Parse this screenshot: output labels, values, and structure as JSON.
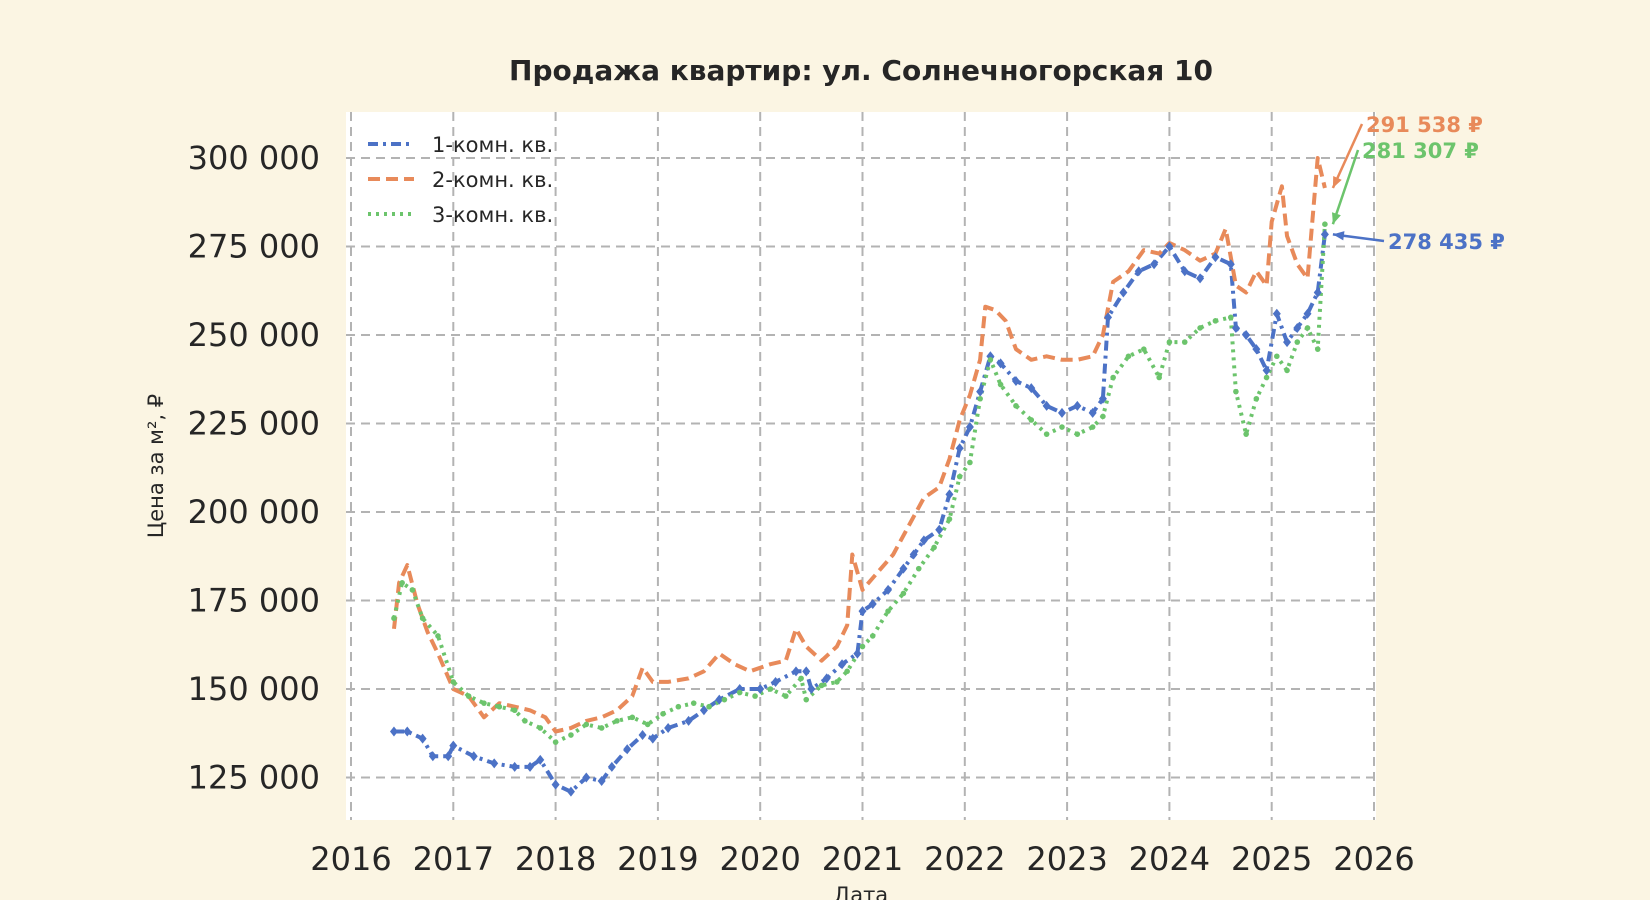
{
  "chart_data": {
    "type": "line",
    "title": "Продажа квартир: ул. Солнечногорская 10",
    "xlabel": "Дата",
    "ylabel": "Цена за м², ₽",
    "xlim": [
      2016,
      2026
    ],
    "ylim": [
      113000,
      313000
    ],
    "x_ticks": [
      2016,
      2017,
      2018,
      2019,
      2020,
      2021,
      2022,
      2023,
      2024,
      2025,
      2026
    ],
    "x_tick_labels": [
      "2016",
      "2017",
      "2018",
      "2019",
      "2020",
      "2021",
      "2022",
      "2023",
      "2024",
      "2025",
      "2026"
    ],
    "y_ticks": [
      125000,
      150000,
      175000,
      200000,
      225000,
      250000,
      275000,
      300000
    ],
    "y_tick_labels": [
      "125 000",
      "150 000",
      "175 000",
      "200 000",
      "225 000",
      "250 000",
      "275 000",
      "300 000"
    ],
    "grid": true,
    "legend_position": "top-left",
    "series": [
      {
        "name": "1-комн. кв.",
        "color": "#4c72c6",
        "style": "dash-dot",
        "marker": "diamond",
        "end_label": "278 435 ₽",
        "points": [
          [
            2016.42,
            138000
          ],
          [
            2016.55,
            138000
          ],
          [
            2016.7,
            136000
          ],
          [
            2016.8,
            131000
          ],
          [
            2016.95,
            131000
          ],
          [
            2017.0,
            134000
          ],
          [
            2017.2,
            131000
          ],
          [
            2017.4,
            129000
          ],
          [
            2017.6,
            128000
          ],
          [
            2017.75,
            128000
          ],
          [
            2017.85,
            130000
          ],
          [
            2018.0,
            123000
          ],
          [
            2018.15,
            121000
          ],
          [
            2018.3,
            125000
          ],
          [
            2018.45,
            124000
          ],
          [
            2018.55,
            128000
          ],
          [
            2018.7,
            133000
          ],
          [
            2018.85,
            137000
          ],
          [
            2018.95,
            136000
          ],
          [
            2019.1,
            139000
          ],
          [
            2019.3,
            141000
          ],
          [
            2019.45,
            144000
          ],
          [
            2019.6,
            147000
          ],
          [
            2019.8,
            150000
          ],
          [
            2020.0,
            150000
          ],
          [
            2020.15,
            152000
          ],
          [
            2020.35,
            155000
          ],
          [
            2020.45,
            155000
          ],
          [
            2020.5,
            150000
          ],
          [
            2020.65,
            153000
          ],
          [
            2020.8,
            157000
          ],
          [
            2020.95,
            160000
          ],
          [
            2021.0,
            172000
          ],
          [
            2021.1,
            174000
          ],
          [
            2021.25,
            178000
          ],
          [
            2021.4,
            184000
          ],
          [
            2021.5,
            188000
          ],
          [
            2021.6,
            192000
          ],
          [
            2021.75,
            195000
          ],
          [
            2021.85,
            205000
          ],
          [
            2021.95,
            218000
          ],
          [
            2022.05,
            224000
          ],
          [
            2022.15,
            234000
          ],
          [
            2022.25,
            244000
          ],
          [
            2022.35,
            242000
          ],
          [
            2022.5,
            237000
          ],
          [
            2022.65,
            235000
          ],
          [
            2022.8,
            230000
          ],
          [
            2022.95,
            228000
          ],
          [
            2023.1,
            230000
          ],
          [
            2023.25,
            228000
          ],
          [
            2023.35,
            232000
          ],
          [
            2023.4,
            255000
          ],
          [
            2023.55,
            262000
          ],
          [
            2023.7,
            268000
          ],
          [
            2023.85,
            270000
          ],
          [
            2024.0,
            275000
          ],
          [
            2024.15,
            268000
          ],
          [
            2024.3,
            266000
          ],
          [
            2024.45,
            272000
          ],
          [
            2024.6,
            270000
          ],
          [
            2024.65,
            252000
          ],
          [
            2024.75,
            250000
          ],
          [
            2024.85,
            246000
          ],
          [
            2024.95,
            240000
          ],
          [
            2025.05,
            256000
          ],
          [
            2025.15,
            248000
          ],
          [
            2025.25,
            252000
          ],
          [
            2025.35,
            256000
          ],
          [
            2025.45,
            262000
          ],
          [
            2025.52,
            278435
          ]
        ]
      },
      {
        "name": "2-комн. кв.",
        "color": "#e88a5a",
        "style": "dashed",
        "marker": "none",
        "end_label": "291 538 ₽",
        "points": [
          [
            2016.42,
            167000
          ],
          [
            2016.47,
            180000
          ],
          [
            2016.55,
            185000
          ],
          [
            2016.65,
            174000
          ],
          [
            2016.75,
            166000
          ],
          [
            2016.85,
            160000
          ],
          [
            2017.0,
            150000
          ],
          [
            2017.15,
            148000
          ],
          [
            2017.3,
            142000
          ],
          [
            2017.45,
            146000
          ],
          [
            2017.6,
            145000
          ],
          [
            2017.75,
            144000
          ],
          [
            2017.9,
            142000
          ],
          [
            2018.0,
            138000
          ],
          [
            2018.15,
            139000
          ],
          [
            2018.3,
            141000
          ],
          [
            2018.45,
            142000
          ],
          [
            2018.6,
            144000
          ],
          [
            2018.75,
            148000
          ],
          [
            2018.85,
            156000
          ],
          [
            2018.95,
            152000
          ],
          [
            2019.1,
            152000
          ],
          [
            2019.3,
            153000
          ],
          [
            2019.45,
            155000
          ],
          [
            2019.6,
            160000
          ],
          [
            2019.75,
            157000
          ],
          [
            2019.9,
            155000
          ],
          [
            2020.1,
            157000
          ],
          [
            2020.25,
            158000
          ],
          [
            2020.35,
            167000
          ],
          [
            2020.45,
            162000
          ],
          [
            2020.6,
            158000
          ],
          [
            2020.75,
            162000
          ],
          [
            2020.85,
            168000
          ],
          [
            2020.9,
            188000
          ],
          [
            2021.0,
            178000
          ],
          [
            2021.15,
            183000
          ],
          [
            2021.3,
            188000
          ],
          [
            2021.45,
            196000
          ],
          [
            2021.6,
            204000
          ],
          [
            2021.75,
            207000
          ],
          [
            2021.85,
            215000
          ],
          [
            2021.95,
            226000
          ],
          [
            2022.05,
            233000
          ],
          [
            2022.15,
            243000
          ],
          [
            2022.2,
            258000
          ],
          [
            2022.3,
            257000
          ],
          [
            2022.4,
            254000
          ],
          [
            2022.5,
            246000
          ],
          [
            2022.65,
            243000
          ],
          [
            2022.8,
            244000
          ],
          [
            2022.95,
            243000
          ],
          [
            2023.1,
            243000
          ],
          [
            2023.25,
            244000
          ],
          [
            2023.35,
            250000
          ],
          [
            2023.45,
            265000
          ],
          [
            2023.6,
            268000
          ],
          [
            2023.75,
            274000
          ],
          [
            2023.9,
            273000
          ],
          [
            2024.0,
            276000
          ],
          [
            2024.15,
            274000
          ],
          [
            2024.3,
            271000
          ],
          [
            2024.45,
            273000
          ],
          [
            2024.55,
            280000
          ],
          [
            2024.65,
            264000
          ],
          [
            2024.75,
            262000
          ],
          [
            2024.85,
            268000
          ],
          [
            2024.95,
            264000
          ],
          [
            2025.0,
            282000
          ],
          [
            2025.1,
            292000
          ],
          [
            2025.15,
            278000
          ],
          [
            2025.25,
            270000
          ],
          [
            2025.35,
            266000
          ],
          [
            2025.45,
            300000
          ],
          [
            2025.52,
            291538
          ]
        ]
      },
      {
        "name": "3-комн. кв.",
        "color": "#6cc46c",
        "style": "dotted",
        "marker": "dot",
        "end_label": "281 307 ₽",
        "points": [
          [
            2016.42,
            170000
          ],
          [
            2016.5,
            180000
          ],
          [
            2016.6,
            178000
          ],
          [
            2016.7,
            170000
          ],
          [
            2016.85,
            165000
          ],
          [
            2017.0,
            152000
          ],
          [
            2017.15,
            148000
          ],
          [
            2017.3,
            146000
          ],
          [
            2017.45,
            145000
          ],
          [
            2017.6,
            144000
          ],
          [
            2017.7,
            141000
          ],
          [
            2017.85,
            139000
          ],
          [
            2018.0,
            135000
          ],
          [
            2018.15,
            137000
          ],
          [
            2018.3,
            140000
          ],
          [
            2018.45,
            139000
          ],
          [
            2018.6,
            141000
          ],
          [
            2018.75,
            142000
          ],
          [
            2018.9,
            140000
          ],
          [
            2019.05,
            143000
          ],
          [
            2019.2,
            145000
          ],
          [
            2019.35,
            146000
          ],
          [
            2019.5,
            145000
          ],
          [
            2019.65,
            147000
          ],
          [
            2019.8,
            149000
          ],
          [
            2019.95,
            148000
          ],
          [
            2020.1,
            150000
          ],
          [
            2020.25,
            148000
          ],
          [
            2020.4,
            153000
          ],
          [
            2020.45,
            147000
          ],
          [
            2020.6,
            151000
          ],
          [
            2020.75,
            152000
          ],
          [
            2020.85,
            155000
          ],
          [
            2021.0,
            162000
          ],
          [
            2021.1,
            165000
          ],
          [
            2021.25,
            172000
          ],
          [
            2021.4,
            177000
          ],
          [
            2021.55,
            184000
          ],
          [
            2021.7,
            190000
          ],
          [
            2021.85,
            198000
          ],
          [
            2021.95,
            210000
          ],
          [
            2022.05,
            214000
          ],
          [
            2022.15,
            232000
          ],
          [
            2022.25,
            243000
          ],
          [
            2022.35,
            236000
          ],
          [
            2022.5,
            230000
          ],
          [
            2022.65,
            226000
          ],
          [
            2022.8,
            222000
          ],
          [
            2022.95,
            224000
          ],
          [
            2023.1,
            222000
          ],
          [
            2023.25,
            224000
          ],
          [
            2023.35,
            227000
          ],
          [
            2023.45,
            238000
          ],
          [
            2023.6,
            244000
          ],
          [
            2023.75,
            246000
          ],
          [
            2023.9,
            238000
          ],
          [
            2024.0,
            248000
          ],
          [
            2024.15,
            248000
          ],
          [
            2024.3,
            252000
          ],
          [
            2024.45,
            254000
          ],
          [
            2024.6,
            255000
          ],
          [
            2024.65,
            234000
          ],
          [
            2024.75,
            222000
          ],
          [
            2024.85,
            232000
          ],
          [
            2024.95,
            238000
          ],
          [
            2025.05,
            244000
          ],
          [
            2025.15,
            240000
          ],
          [
            2025.25,
            248000
          ],
          [
            2025.35,
            252000
          ],
          [
            2025.45,
            246000
          ],
          [
            2025.52,
            281307
          ]
        ]
      }
    ]
  }
}
